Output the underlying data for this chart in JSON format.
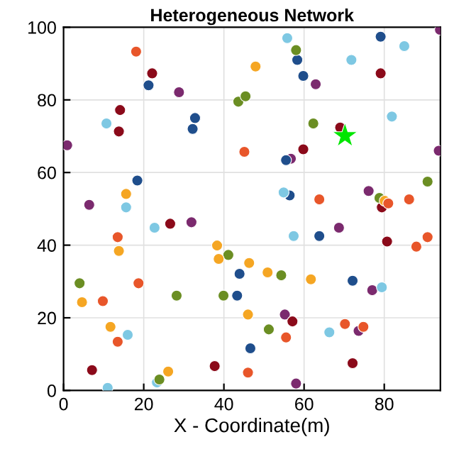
{
  "chart_data": {
    "type": "scatter",
    "title": "Heterogeneous Network",
    "xlabel": "X - Coordinate(m)",
    "xlim": [
      0,
      94
    ],
    "ylim": [
      0,
      100
    ],
    "xticks": [
      0,
      20,
      40,
      60,
      80
    ],
    "yticks": [
      0,
      20,
      40,
      60,
      80,
      100
    ],
    "grid": true,
    "marker": "circle",
    "series": [
      {
        "color": "#e8562a",
        "x": [
          18.1,
          45.1,
          63.8,
          86.2,
          90.8,
          88.0,
          13.5,
          18.7,
          9.8,
          13.5,
          55.5,
          46.0,
          70.2,
          74.8,
          81.0
        ],
        "values": [
          93.3,
          65.7,
          52.6,
          52.6,
          42.2,
          39.6,
          42.2,
          29.5,
          24.6,
          13.4,
          14.6,
          4.9,
          18.3,
          17.5,
          51.5
        ]
      },
      {
        "color": "#f5a623",
        "x": [
          47.9,
          15.6,
          13.8,
          38.3,
          38.7,
          46.3,
          50.9,
          61.7,
          80.1,
          4.6,
          11.7,
          26.1,
          46.0
        ],
        "values": [
          89.2,
          54.1,
          38.4,
          39.9,
          36.2,
          35.1,
          32.5,
          30.6,
          52.2,
          24.3,
          17.5,
          5.2,
          20.9
        ]
      },
      {
        "color": "#6b8e23",
        "x": [
          43.6,
          45.4,
          58.0,
          62.3,
          78.8,
          90.8,
          41.1,
          54.3,
          4.0,
          28.2,
          39.9,
          51.2,
          23.9
        ],
        "values": [
          79.5,
          81.0,
          93.7,
          73.5,
          53.0,
          57.5,
          37.3,
          31.7,
          29.5,
          26.1,
          26.1,
          16.8,
          3.0
        ]
      },
      {
        "color": "#7ec8e3",
        "x": [
          55.8,
          71.8,
          85.0,
          81.9,
          10.7,
          54.9,
          15.6,
          22.7,
          57.4,
          79.4,
          16.0,
          11.0,
          23.3,
          66.3
        ],
        "values": [
          97.0,
          91.0,
          94.8,
          75.4,
          73.5,
          54.5,
          50.4,
          44.8,
          42.5,
          28.4,
          15.3,
          0.7,
          2.2,
          16.0
        ]
      },
      {
        "color": "#1f4e8c",
        "x": [
          21.2,
          32.8,
          32.2,
          58.3,
          59.8,
          79.1,
          55.5,
          18.4,
          56.4,
          63.8,
          43.9,
          72.1,
          43.3,
          46.6
        ],
        "values": [
          84.0,
          75.0,
          72.0,
          91.0,
          86.6,
          97.4,
          63.4,
          57.8,
          53.7,
          42.5,
          32.1,
          30.2,
          26.1,
          11.6
        ]
      },
      {
        "color": "#8b0a1a",
        "x": [
          22.1,
          14.1,
          13.8,
          59.8,
          69.0,
          79.1,
          26.6,
          79.4,
          80.7,
          7.1,
          37.7,
          57.1,
          72.1
        ],
        "values": [
          87.3,
          77.2,
          71.3,
          66.4,
          72.4,
          87.3,
          45.9,
          50.4,
          41.0,
          5.6,
          6.7,
          19.0,
          7.5
        ]
      },
      {
        "color": "#7b2a6e",
        "x": [
          28.8,
          0.9,
          62.9,
          56.7,
          93.9,
          93.6,
          6.4,
          31.9,
          68.7,
          76.1,
          77.0,
          55.2,
          58.0,
          73.6
        ],
        "values": [
          82.1,
          67.5,
          84.3,
          63.8,
          99.3,
          66.0,
          51.1,
          46.3,
          44.8,
          54.9,
          27.6,
          20.9,
          1.9,
          16.4
        ]
      },
      {
        "color": "#00e600",
        "marker": "star",
        "x": [
          70.2
        ],
        "values": [
          70.1
        ]
      }
    ]
  }
}
